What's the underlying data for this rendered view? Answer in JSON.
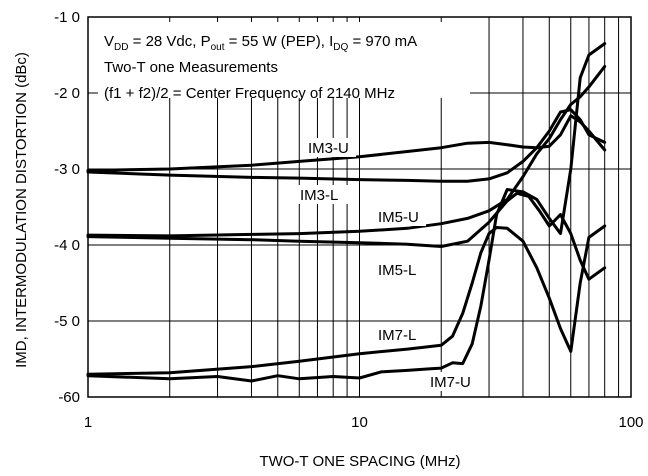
{
  "chart_data": {
    "type": "line",
    "x_scale": "log",
    "xlim": [
      1,
      100
    ],
    "ylim": [
      -60,
      -10
    ],
    "grid": true,
    "xlabel": "TWO-T ONE SPACING (MHz)",
    "ylabel": "IMD, INTERMODULATION DISTORTION (dBc)",
    "x_tick_labels": [
      "1",
      "10",
      "100"
    ],
    "x_tick_values": [
      1,
      10,
      100
    ],
    "y_tick_labels": [
      "-1 0",
      "-2 0",
      "-3 0",
      "-4 0",
      "-5 0",
      "-60"
    ],
    "y_tick_values": [
      -10,
      -20,
      -30,
      -40,
      -50,
      -60
    ],
    "annotations": [
      {
        "parts": [
          "V",
          "DD",
          " = 28 Vdc, P",
          "out",
          " = 55 W (PEP), I",
          "DQ",
          " = 970 mA"
        ]
      },
      {
        "text": "Two-T one Measurements"
      },
      {
        "text": "(f1 + f2)/2 = Center Frequency of 2140 MHz"
      }
    ],
    "series": [
      {
        "name": "IM3-U",
        "x": [
          1,
          2,
          4,
          6,
          10,
          15,
          20,
          25,
          30,
          35,
          40,
          45,
          50,
          55,
          60,
          65,
          70,
          80
        ],
        "y": [
          -30.2,
          -30,
          -29.5,
          -29,
          -28.4,
          -27.7,
          -27.2,
          -26.6,
          -26.5,
          -26.8,
          -27.1,
          -27.2,
          -27.0,
          -25.5,
          -23,
          -23.8,
          -25,
          -27.5
        ]
      },
      {
        "name": "IM3-L",
        "x": [
          1,
          2,
          4,
          6,
          10,
          15,
          20,
          25,
          30,
          35,
          40,
          45,
          50,
          55,
          60,
          65,
          70,
          80
        ],
        "y": [
          -30.4,
          -30.8,
          -31.1,
          -31.2,
          -31.4,
          -31.5,
          -31.6,
          -31.6,
          -31.3,
          -30.5,
          -29,
          -27.2,
          -25,
          -22.5,
          -22.2,
          -23.5,
          -25.5,
          -26.5
        ]
      },
      {
        "name": "IM5-U",
        "x": [
          1,
          2,
          4,
          6,
          10,
          15,
          20,
          25,
          30,
          35,
          40,
          45,
          50,
          55,
          60,
          65,
          70,
          80
        ],
        "y": [
          -38.7,
          -38.8,
          -38.6,
          -38.5,
          -38.2,
          -37.8,
          -37.2,
          -36.5,
          -35.5,
          -34,
          -31,
          -28,
          -26,
          -23.5,
          -21.5,
          -20.5,
          -19.2,
          -16.5
        ]
      },
      {
        "name": "IM5-L",
        "x": [
          1,
          2,
          4,
          6,
          10,
          15,
          20,
          25,
          30,
          35,
          38,
          42,
          46,
          50,
          55,
          60,
          65,
          70,
          80
        ],
        "y": [
          -38.9,
          -39.1,
          -39.3,
          -39.5,
          -39.7,
          -39.9,
          -40.2,
          -39.5,
          -37,
          -34.2,
          -33.2,
          -33.6,
          -35.5,
          -37.5,
          -36,
          -38.5,
          -42,
          -44.5,
          -43
        ]
      },
      {
        "name": "IM7-L",
        "x": [
          1,
          2,
          4,
          6,
          10,
          15,
          20,
          22,
          24,
          26,
          28,
          30,
          32,
          35,
          40,
          45,
          50,
          55,
          60,
          65,
          70,
          80
        ],
        "y": [
          -57,
          -56.8,
          -56,
          -55.3,
          -54.3,
          -53.7,
          -53.2,
          -52,
          -49,
          -45,
          -41,
          -38.5,
          -37.7,
          -37.8,
          -39.5,
          -43,
          -47,
          -51,
          -54,
          -45,
          -39,
          -37.5
        ]
      },
      {
        "name": "IM7-U",
        "x": [
          1,
          2,
          3,
          4,
          5,
          6,
          8,
          10,
          12,
          15,
          18,
          20,
          22,
          24,
          26,
          28,
          30,
          32,
          35,
          40,
          45,
          50,
          55,
          60,
          65,
          70,
          80
        ],
        "y": [
          -57.2,
          -57.6,
          -57.3,
          -57.9,
          -57.2,
          -57.6,
          -57.3,
          -57.5,
          -56.7,
          -56.5,
          -56.3,
          -56.2,
          -55.5,
          -55.6,
          -53,
          -48,
          -42,
          -36,
          -32.7,
          -33,
          -34,
          -36.5,
          -38.5,
          -30,
          -18,
          -15,
          -13.5
        ]
      }
    ]
  }
}
